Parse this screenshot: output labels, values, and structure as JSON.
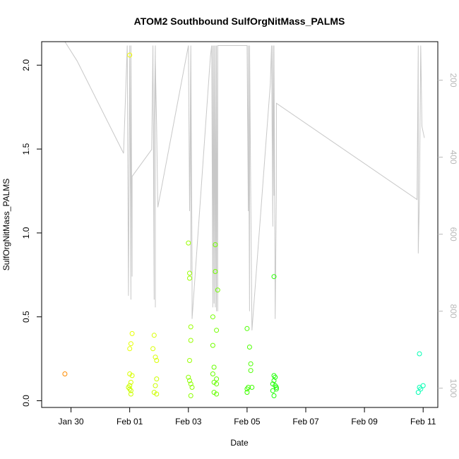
{
  "chart_data": {
    "type": "scatter",
    "title": "ATOM2 Southbound SulfOrgNitMass_PALMS",
    "xlabel": "Date",
    "ylabel": "SulfOrgNitMass_PALMS",
    "x_ticks": [
      {
        "date": "2017-01-30",
        "label": "Jan 30"
      },
      {
        "date": "2017-02-01",
        "label": "Feb 01"
      },
      {
        "date": "2017-02-03",
        "label": "Feb 03"
      },
      {
        "date": "2017-02-05",
        "label": "Feb 05"
      },
      {
        "date": "2017-02-07",
        "label": "Feb 07"
      },
      {
        "date": "2017-02-09",
        "label": "Feb 09"
      },
      {
        "date": "2017-02-11",
        "label": "Feb 11"
      }
    ],
    "xlim": [
      "2017-01-29T00:00",
      "2017-02-11T12:00"
    ],
    "y_ticks": [
      0.0,
      0.5,
      1.0,
      1.5,
      2.0
    ],
    "y_tick_labels": [
      "0.0",
      "0.5",
      "1.0",
      "1.5",
      "2.0"
    ],
    "ylim": [
      -0.04,
      2.14
    ],
    "y2_ticks": [
      200,
      400,
      600,
      800,
      1000
    ],
    "y2_tick_labels": [
      "200",
      "400",
      "600",
      "800",
      "1000"
    ],
    "y2_reversed": true,
    "y2_lim": [
      1050,
      100
    ],
    "grid": false,
    "series": [
      {
        "marker": "open-circle",
        "points": [
          {
            "x": "2017-01-29T19:00",
            "y": 0.16,
            "color": "#ff8c00"
          },
          {
            "x": "2017-02-01T00:00",
            "y": 2.06,
            "color": "#f2ff00"
          },
          {
            "x": "2017-02-01T02:00",
            "y": 0.4,
            "color": "#e6ff00"
          },
          {
            "x": "2017-02-01T01:00",
            "y": 0.34,
            "color": "#e6ff00"
          },
          {
            "x": "2017-02-01T00:00",
            "y": 0.31,
            "color": "#e6ff00"
          },
          {
            "x": "2017-02-01T00:00",
            "y": 0.16,
            "color": "#d9ff00"
          },
          {
            "x": "2017-02-01T02:00",
            "y": 0.15,
            "color": "#d9ff00"
          },
          {
            "x": "2017-02-01T01:00",
            "y": 0.11,
            "color": "#d9ff00"
          },
          {
            "x": "2017-02-01T00:00",
            "y": 0.09,
            "color": "#ccff00"
          },
          {
            "x": "2017-02-01T00:00",
            "y": 0.07,
            "color": "#ccff00"
          },
          {
            "x": "2017-02-01T01:00",
            "y": 0.06,
            "color": "#ccff00"
          },
          {
            "x": "2017-01-31T23:00",
            "y": 0.08,
            "color": "#ccff00"
          },
          {
            "x": "2017-02-01T01:00",
            "y": 0.04,
            "color": "#ccff00"
          },
          {
            "x": "2017-02-01T20:00",
            "y": 0.39,
            "color": "#d9ff00"
          },
          {
            "x": "2017-02-01T19:00",
            "y": 0.31,
            "color": "#d9ff00"
          },
          {
            "x": "2017-02-01T21:00",
            "y": 0.26,
            "color": "#d9ff00"
          },
          {
            "x": "2017-02-01T22:00",
            "y": 0.24,
            "color": "#d9ff00"
          },
          {
            "x": "2017-02-01T22:00",
            "y": 0.13,
            "color": "#ccff00"
          },
          {
            "x": "2017-02-01T21:00",
            "y": 0.09,
            "color": "#ccff00"
          },
          {
            "x": "2017-02-01T20:00",
            "y": 0.05,
            "color": "#ccff00"
          },
          {
            "x": "2017-02-01T22:00",
            "y": 0.04,
            "color": "#ccff00"
          },
          {
            "x": "2017-02-03T00:00",
            "y": 0.94,
            "color": "#99ff00"
          },
          {
            "x": "2017-02-03T01:00",
            "y": 0.76,
            "color": "#99ff00"
          },
          {
            "x": "2017-02-03T01:00",
            "y": 0.73,
            "color": "#99ff00"
          },
          {
            "x": "2017-02-03T02:00",
            "y": 0.44,
            "color": "#99ff00"
          },
          {
            "x": "2017-02-03T02:00",
            "y": 0.36,
            "color": "#99ff00"
          },
          {
            "x": "2017-02-03T01:00",
            "y": 0.24,
            "color": "#99ff00"
          },
          {
            "x": "2017-02-03T00:00",
            "y": 0.14,
            "color": "#8cff00"
          },
          {
            "x": "2017-02-03T01:00",
            "y": 0.12,
            "color": "#8cff00"
          },
          {
            "x": "2017-02-03T02:00",
            "y": 0.1,
            "color": "#8cff00"
          },
          {
            "x": "2017-02-03T03:00",
            "y": 0.08,
            "color": "#8cff00"
          },
          {
            "x": "2017-02-03T02:00",
            "y": 0.03,
            "color": "#8cff00"
          },
          {
            "x": "2017-02-03T22:00",
            "y": 0.93,
            "color": "#73ff00"
          },
          {
            "x": "2017-02-03T22:00",
            "y": 0.77,
            "color": "#73ff00"
          },
          {
            "x": "2017-02-04T00:00",
            "y": 0.66,
            "color": "#73ff00"
          },
          {
            "x": "2017-02-03T20:00",
            "y": 0.5,
            "color": "#73ff00"
          },
          {
            "x": "2017-02-03T23:00",
            "y": 0.42,
            "color": "#73ff00"
          },
          {
            "x": "2017-02-03T20:00",
            "y": 0.33,
            "color": "#73ff00"
          },
          {
            "x": "2017-02-03T21:00",
            "y": 0.2,
            "color": "#66ff00"
          },
          {
            "x": "2017-02-03T20:00",
            "y": 0.16,
            "color": "#66ff00"
          },
          {
            "x": "2017-02-03T23:00",
            "y": 0.13,
            "color": "#66ff00"
          },
          {
            "x": "2017-02-03T21:00",
            "y": 0.11,
            "color": "#66ff00"
          },
          {
            "x": "2017-02-03T23:00",
            "y": 0.1,
            "color": "#66ff00"
          },
          {
            "x": "2017-02-03T21:00",
            "y": 0.05,
            "color": "#66ff00"
          },
          {
            "x": "2017-02-03T23:00",
            "y": 0.04,
            "color": "#66ff00"
          },
          {
            "x": "2017-02-05T00:00",
            "y": 0.43,
            "color": "#4dff00"
          },
          {
            "x": "2017-02-05T02:00",
            "y": 0.32,
            "color": "#4dff00"
          },
          {
            "x": "2017-02-05T03:00",
            "y": 0.22,
            "color": "#4dff00"
          },
          {
            "x": "2017-02-05T03:00",
            "y": 0.18,
            "color": "#4dff00"
          },
          {
            "x": "2017-02-05T01:00",
            "y": 0.08,
            "color": "#40ff00"
          },
          {
            "x": "2017-02-05T04:00",
            "y": 0.08,
            "color": "#40ff00"
          },
          {
            "x": "2017-02-05T00:00",
            "y": 0.07,
            "color": "#40ff00"
          },
          {
            "x": "2017-02-05T00:00",
            "y": 0.05,
            "color": "#40ff00"
          },
          {
            "x": "2017-02-05T22:00",
            "y": 0.74,
            "color": "#26ff00"
          },
          {
            "x": "2017-02-05T22:00",
            "y": 0.15,
            "color": "#1aff00"
          },
          {
            "x": "2017-02-05T23:00",
            "y": 0.14,
            "color": "#1aff00"
          },
          {
            "x": "2017-02-05T22:00",
            "y": 0.12,
            "color": "#1aff00"
          },
          {
            "x": "2017-02-05T21:00",
            "y": 0.1,
            "color": "#1aff00"
          },
          {
            "x": "2017-02-05T23:00",
            "y": 0.09,
            "color": "#1aff00"
          },
          {
            "x": "2017-02-06T00:00",
            "y": 0.07,
            "color": "#1aff00"
          },
          {
            "x": "2017-02-05T21:00",
            "y": 0.06,
            "color": "#1aff00"
          },
          {
            "x": "2017-02-05T22:00",
            "y": 0.03,
            "color": "#1aff00"
          },
          {
            "x": "2017-02-06T00:00",
            "y": 0.08,
            "color": "#1aff00"
          },
          {
            "x": "2017-02-10T21:00",
            "y": 0.28,
            "color": "#00ffb3"
          },
          {
            "x": "2017-02-11T00:00",
            "y": 0.09,
            "color": "#00ffb3"
          },
          {
            "x": "2017-02-10T21:00",
            "y": 0.08,
            "color": "#00ffb3"
          },
          {
            "x": "2017-02-10T22:00",
            "y": 0.07,
            "color": "#00ffb3"
          },
          {
            "x": "2017-02-10T20:00",
            "y": 0.05,
            "color": "#00ffb3"
          }
        ]
      }
    ],
    "secondary_line": {
      "color": "#c8c8c8",
      "points": [
        [
          "2017-01-29T19:00",
          80
        ],
        [
          "2017-01-30T05:00",
          150
        ],
        [
          "2017-01-31T19:00",
          390
        ],
        [
          "2017-01-31T22:00",
          110
        ],
        [
          "2017-01-31T23:00",
          760
        ],
        [
          "2017-02-01T00:00",
          110
        ],
        [
          "2017-02-01T01:00",
          770
        ],
        [
          "2017-02-01T01:00",
          110
        ],
        [
          "2017-02-01T02:00",
          710
        ],
        [
          "2017-02-01T02:00",
          450
        ],
        [
          "2017-02-01T18:00",
          380
        ],
        [
          "2017-02-01T19:00",
          110
        ],
        [
          "2017-02-01T20:00",
          770
        ],
        [
          "2017-02-01T20:00",
          320
        ],
        [
          "2017-02-01T21:00",
          110
        ],
        [
          "2017-02-01T21:00",
          790
        ],
        [
          "2017-02-01T21:00",
          150
        ],
        [
          "2017-02-01T22:00",
          320
        ],
        [
          "2017-02-01T23:00",
          530
        ],
        [
          "2017-02-03T00:00",
          110
        ],
        [
          "2017-02-03T01:00",
          540
        ],
        [
          "2017-02-03T02:00",
          110
        ],
        [
          "2017-02-03T02:00",
          700
        ],
        [
          "2017-02-03T02:00",
          110
        ],
        [
          "2017-02-03T03:00",
          690
        ],
        [
          "2017-02-03T03:00",
          820
        ],
        [
          "2017-02-03T18:00",
          140
        ],
        [
          "2017-02-03T19:00",
          110
        ],
        [
          "2017-02-03T20:00",
          790
        ],
        [
          "2017-02-03T20:00",
          110
        ],
        [
          "2017-02-03T21:00",
          780
        ],
        [
          "2017-02-03T21:00",
          110
        ],
        [
          "2017-02-03T22:00",
          790
        ],
        [
          "2017-02-03T22:00",
          110
        ],
        [
          "2017-02-03T23:00",
          800
        ],
        [
          "2017-02-03T23:00",
          110
        ],
        [
          "2017-02-04T00:00",
          800
        ],
        [
          "2017-02-04T00:00",
          110
        ],
        [
          "2017-02-05T00:00",
          110
        ],
        [
          "2017-02-05T01:00",
          540
        ],
        [
          "2017-02-05T01:00",
          110
        ],
        [
          "2017-02-05T02:00",
          800
        ],
        [
          "2017-02-05T02:00",
          110
        ],
        [
          "2017-02-05T03:00",
          500
        ],
        [
          "2017-02-05T04:00",
          850
        ],
        [
          "2017-02-05T19:00",
          210
        ],
        [
          "2017-02-05T20:00",
          110
        ],
        [
          "2017-02-05T21:00",
          580
        ],
        [
          "2017-02-05T21:00",
          110
        ],
        [
          "2017-02-05T22:00",
          500
        ],
        [
          "2017-02-05T22:00",
          110
        ],
        [
          "2017-02-05T23:00",
          820
        ],
        [
          "2017-02-06T00:00",
          480
        ],
        [
          "2017-02-06T00:00",
          260
        ],
        [
          "2017-02-10T19:00",
          510
        ],
        [
          "2017-02-10T20:00",
          110
        ],
        [
          "2017-02-10T20:00",
          650
        ],
        [
          "2017-02-10T21:00",
          500
        ],
        [
          "2017-02-10T22:00",
          110
        ],
        [
          "2017-02-10T23:00",
          320
        ],
        [
          "2017-02-11T01:00",
          350
        ]
      ]
    }
  }
}
